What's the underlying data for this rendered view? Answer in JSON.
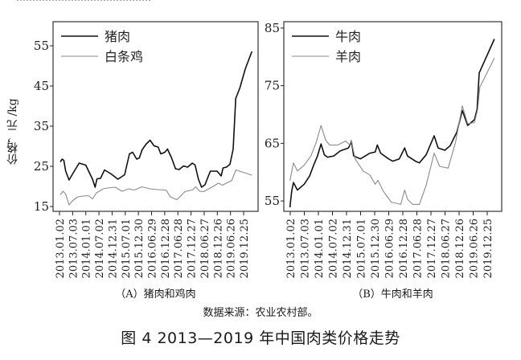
{
  "figure": {
    "title": "图 4  2013—2019 年中国肉类价格走势",
    "source": "数据来源：农业农村部。",
    "top_cut_text": "……………………………………"
  },
  "colors": {
    "primary_line": "#111111",
    "secondary_line": "#8a8a8a",
    "axis": "#222222",
    "frame": "#333333"
  },
  "chart_data": [
    {
      "type": "line",
      "panel": "A",
      "caption": "（A）猪肉和鸡肉",
      "title": "",
      "xlabel": "",
      "ylabel": "价格，元 /kg",
      "ylim": [
        13.8,
        61
      ],
      "yticks": [
        15,
        25,
        35,
        45,
        55
      ],
      "grid": false,
      "legend_position": "top-left",
      "categories": [
        "2013.01.02",
        "2013.07.03",
        "2014.01.01",
        "2014.07.02",
        "2014.12.31",
        "2015.07.01",
        "2015.12.30",
        "2016.06.29",
        "2016.12.28",
        "2017.06.28",
        "2017.12.27",
        "2018.06.27",
        "2018.12.26",
        "2019.06.26",
        "2019.12.25"
      ],
      "series": [
        {
          "name": "猪肉",
          "style": "primary",
          "points": [
            [
              0.06,
              26.1
            ],
            [
              0.2,
              26.8
            ],
            [
              0.33,
              26.5
            ],
            [
              0.47,
              23.8
            ],
            [
              0.73,
              21.6
            ],
            [
              0.94,
              22.8
            ],
            [
              1.18,
              24.1
            ],
            [
              1.49,
              25.8
            ],
            [
              2.0,
              25.3
            ],
            [
              2.2,
              23.9
            ],
            [
              2.51,
              21.8
            ],
            [
              2.71,
              19.8
            ],
            [
              2.85,
              21.9
            ],
            [
              3.12,
              22.0
            ],
            [
              3.42,
              24.1
            ],
            [
              3.93,
              23.1
            ],
            [
              4.44,
              21.8
            ],
            [
              4.95,
              22.9
            ],
            [
              5.32,
              28.1
            ],
            [
              5.56,
              28.5
            ],
            [
              5.87,
              26.8
            ],
            [
              6.07,
              27.1
            ],
            [
              6.28,
              29.1
            ],
            [
              6.58,
              30.5
            ],
            [
              6.89,
              31.5
            ],
            [
              7.19,
              30.1
            ],
            [
              7.5,
              29.8
            ],
            [
              7.7,
              28.1
            ],
            [
              8.01,
              28.5
            ],
            [
              8.21,
              29.3
            ],
            [
              8.52,
              27.1
            ],
            [
              8.82,
              24.4
            ],
            [
              9.09,
              24.2
            ],
            [
              9.43,
              25.1
            ],
            [
              9.74,
              24.8
            ],
            [
              10.1,
              25.8
            ],
            [
              10.31,
              25.3
            ],
            [
              10.56,
              21.8
            ],
            [
              10.8,
              19.8
            ],
            [
              11.06,
              20.4
            ],
            [
              11.47,
              23.8
            ],
            [
              11.98,
              23.8
            ],
            [
              12.29,
              22.6
            ],
            [
              12.43,
              24.6
            ],
            [
              12.69,
              24.8
            ],
            [
              12.96,
              25.5
            ],
            [
              13.2,
              29.3
            ],
            [
              13.4,
              41.9
            ],
            [
              13.71,
              44.5
            ],
            [
              14.12,
              49.2
            ],
            [
              14.63,
              53.6
            ]
          ]
        },
        {
          "name": "白条鸡",
          "style": "secondary",
          "points": [
            [
              0.06,
              17.9
            ],
            [
              0.26,
              18.8
            ],
            [
              0.47,
              18.1
            ],
            [
              0.73,
              15.4
            ],
            [
              0.98,
              16.4
            ],
            [
              1.39,
              17.4
            ],
            [
              1.79,
              17.6
            ],
            [
              2.2,
              17.7
            ],
            [
              2.51,
              16.9
            ],
            [
              2.81,
              18.4
            ],
            [
              3.32,
              19.4
            ],
            [
              3.62,
              19.6
            ],
            [
              4.24,
              19.8
            ],
            [
              4.75,
              18.8
            ],
            [
              5.26,
              19.4
            ],
            [
              5.67,
              19.1
            ],
            [
              6.28,
              19.9
            ],
            [
              6.89,
              19.4
            ],
            [
              7.5,
              19.2
            ],
            [
              8.11,
              19.1
            ],
            [
              8.42,
              17.4
            ],
            [
              8.92,
              16.7
            ],
            [
              9.54,
              18.7
            ],
            [
              10.15,
              19.2
            ],
            [
              10.35,
              19.9
            ],
            [
              10.66,
              18.8
            ],
            [
              10.96,
              18.7
            ],
            [
              11.57,
              19.8
            ],
            [
              12.09,
              20.8
            ],
            [
              12.39,
              20.3
            ],
            [
              12.8,
              21.0
            ],
            [
              13.1,
              21.5
            ],
            [
              13.41,
              24.1
            ],
            [
              14.63,
              22.8
            ]
          ]
        }
      ]
    },
    {
      "type": "line",
      "panel": "B",
      "caption": "（B）牛肉和羊肉",
      "title": "",
      "xlabel": "",
      "ylabel": "",
      "ylim": [
        53.2,
        86.1
      ],
      "yticks": [
        55,
        65,
        75,
        85
      ],
      "grid": false,
      "legend_position": "top-left",
      "categories": [
        "2013.01.02",
        "2013.07.03",
        "2014.01.01",
        "2014.07.02",
        "2014.12.31",
        "2015.07.01",
        "2015.12.30",
        "2016.06.29",
        "2016.12.28",
        "2017.06.28",
        "2017.12.27",
        "2018.06.27",
        "2018.12.26",
        "2019.06.26",
        "2019.12.25"
      ],
      "series": [
        {
          "name": "牛肉",
          "style": "primary",
          "points": [
            [
              -0.02,
              53.9
            ],
            [
              0.1,
              56.7
            ],
            [
              0.23,
              58.2
            ],
            [
              0.51,
              56.9
            ],
            [
              0.99,
              57.9
            ],
            [
              1.37,
              59.3
            ],
            [
              1.66,
              61.2
            ],
            [
              1.94,
              62.8
            ],
            [
              2.19,
              64.9
            ],
            [
              2.42,
              63.0
            ],
            [
              2.65,
              62.6
            ],
            [
              3.09,
              62.8
            ],
            [
              3.56,
              63.7
            ],
            [
              4.13,
              64.2
            ],
            [
              4.36,
              65.2
            ],
            [
              4.51,
              62.8
            ],
            [
              4.99,
              62.3
            ],
            [
              5.66,
              63.3
            ],
            [
              6.04,
              63.5
            ],
            [
              6.19,
              64.7
            ],
            [
              6.42,
              63.3
            ],
            [
              6.99,
              62.3
            ],
            [
              7.28,
              61.9
            ],
            [
              7.75,
              62.3
            ],
            [
              8.13,
              64.2
            ],
            [
              8.33,
              62.8
            ],
            [
              8.9,
              61.9
            ],
            [
              9.18,
              61.6
            ],
            [
              9.66,
              63.0
            ],
            [
              10.23,
              66.3
            ],
            [
              10.51,
              64.2
            ],
            [
              10.99,
              63.8
            ],
            [
              11.37,
              64.6
            ],
            [
              11.85,
              67.0
            ],
            [
              12.23,
              70.7
            ],
            [
              12.61,
              68.1
            ],
            [
              13.09,
              69.1
            ],
            [
              13.28,
              70.9
            ],
            [
              13.43,
              77.2
            ],
            [
              14.51,
              83.1
            ]
          ]
        },
        {
          "name": "羊肉",
          "style": "secondary",
          "points": [
            [
              -0.02,
              58.5
            ],
            [
              0.23,
              61.6
            ],
            [
              0.51,
              60.2
            ],
            [
              0.99,
              61.2
            ],
            [
              1.47,
              62.8
            ],
            [
              1.85,
              65.2
            ],
            [
              2.19,
              68.1
            ],
            [
              2.51,
              65.6
            ],
            [
              2.8,
              64.7
            ],
            [
              3.37,
              64.7
            ],
            [
              3.94,
              65.4
            ],
            [
              4.23,
              64.7
            ],
            [
              4.33,
              65.6
            ],
            [
              4.61,
              62.3
            ],
            [
              5.18,
              60.2
            ],
            [
              5.66,
              59.5
            ],
            [
              6.04,
              57.9
            ],
            [
              6.23,
              58.6
            ],
            [
              6.61,
              56.7
            ],
            [
              7.18,
              54.8
            ],
            [
              7.56,
              54.6
            ],
            [
              7.85,
              54.4
            ],
            [
              8.13,
              56.9
            ],
            [
              8.33,
              55.3
            ],
            [
              8.7,
              54.4
            ],
            [
              9.18,
              54.4
            ],
            [
              9.66,
              57.7
            ],
            [
              10.23,
              63.3
            ],
            [
              10.61,
              61.0
            ],
            [
              11.22,
              60.7
            ],
            [
              11.75,
              65.2
            ],
            [
              12.23,
              71.5
            ],
            [
              12.61,
              68.4
            ],
            [
              13.09,
              68.6
            ],
            [
              13.32,
              70.9
            ],
            [
              13.47,
              74.7
            ],
            [
              14.51,
              79.8
            ]
          ]
        }
      ]
    }
  ],
  "layout": {
    "panels": [
      {
        "frame": [
          66,
          27,
          321,
          263
        ],
        "tick0": 74,
        "tickStep": 16.36,
        "labelWidth": 22
      },
      {
        "frame": [
          353,
          27,
          624,
          263
        ],
        "tick0": 361,
        "tickStep": 17.5,
        "labelWidth": 22
      }
    ]
  }
}
